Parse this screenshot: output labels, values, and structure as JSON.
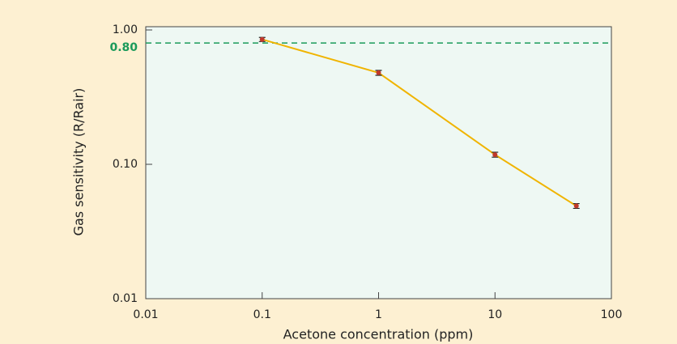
{
  "chart_data": {
    "type": "line",
    "x_label": "Acetone concentration (ppm)",
    "y_label": "Gas sensitivity (R/Rair)",
    "x": [
      0.1,
      1,
      10,
      50
    ],
    "series": [
      {
        "color": "#f0b400",
        "marker_color": "#c0392b",
        "values": [
          0.85,
          0.48,
          0.118,
          0.049
        ],
        "errors": [
          0.03,
          0.02,
          0.005,
          0.002
        ]
      }
    ],
    "xscale": "log",
    "yscale": "log",
    "xlim": [
      0.01,
      100
    ],
    "ylim": [
      0.01,
      1
    ],
    "xticks": [
      0.01,
      0.1,
      1,
      10,
      100
    ],
    "yticks": [
      {
        "value": 0.01,
        "label": "0.01"
      },
      {
        "value": 0.1,
        "label": "0.10"
      },
      {
        "value": 1,
        "label": "1.00"
      }
    ],
    "reference_line": {
      "value": 0.8,
      "label": "0.80",
      "color": "#1a9a5a"
    }
  }
}
